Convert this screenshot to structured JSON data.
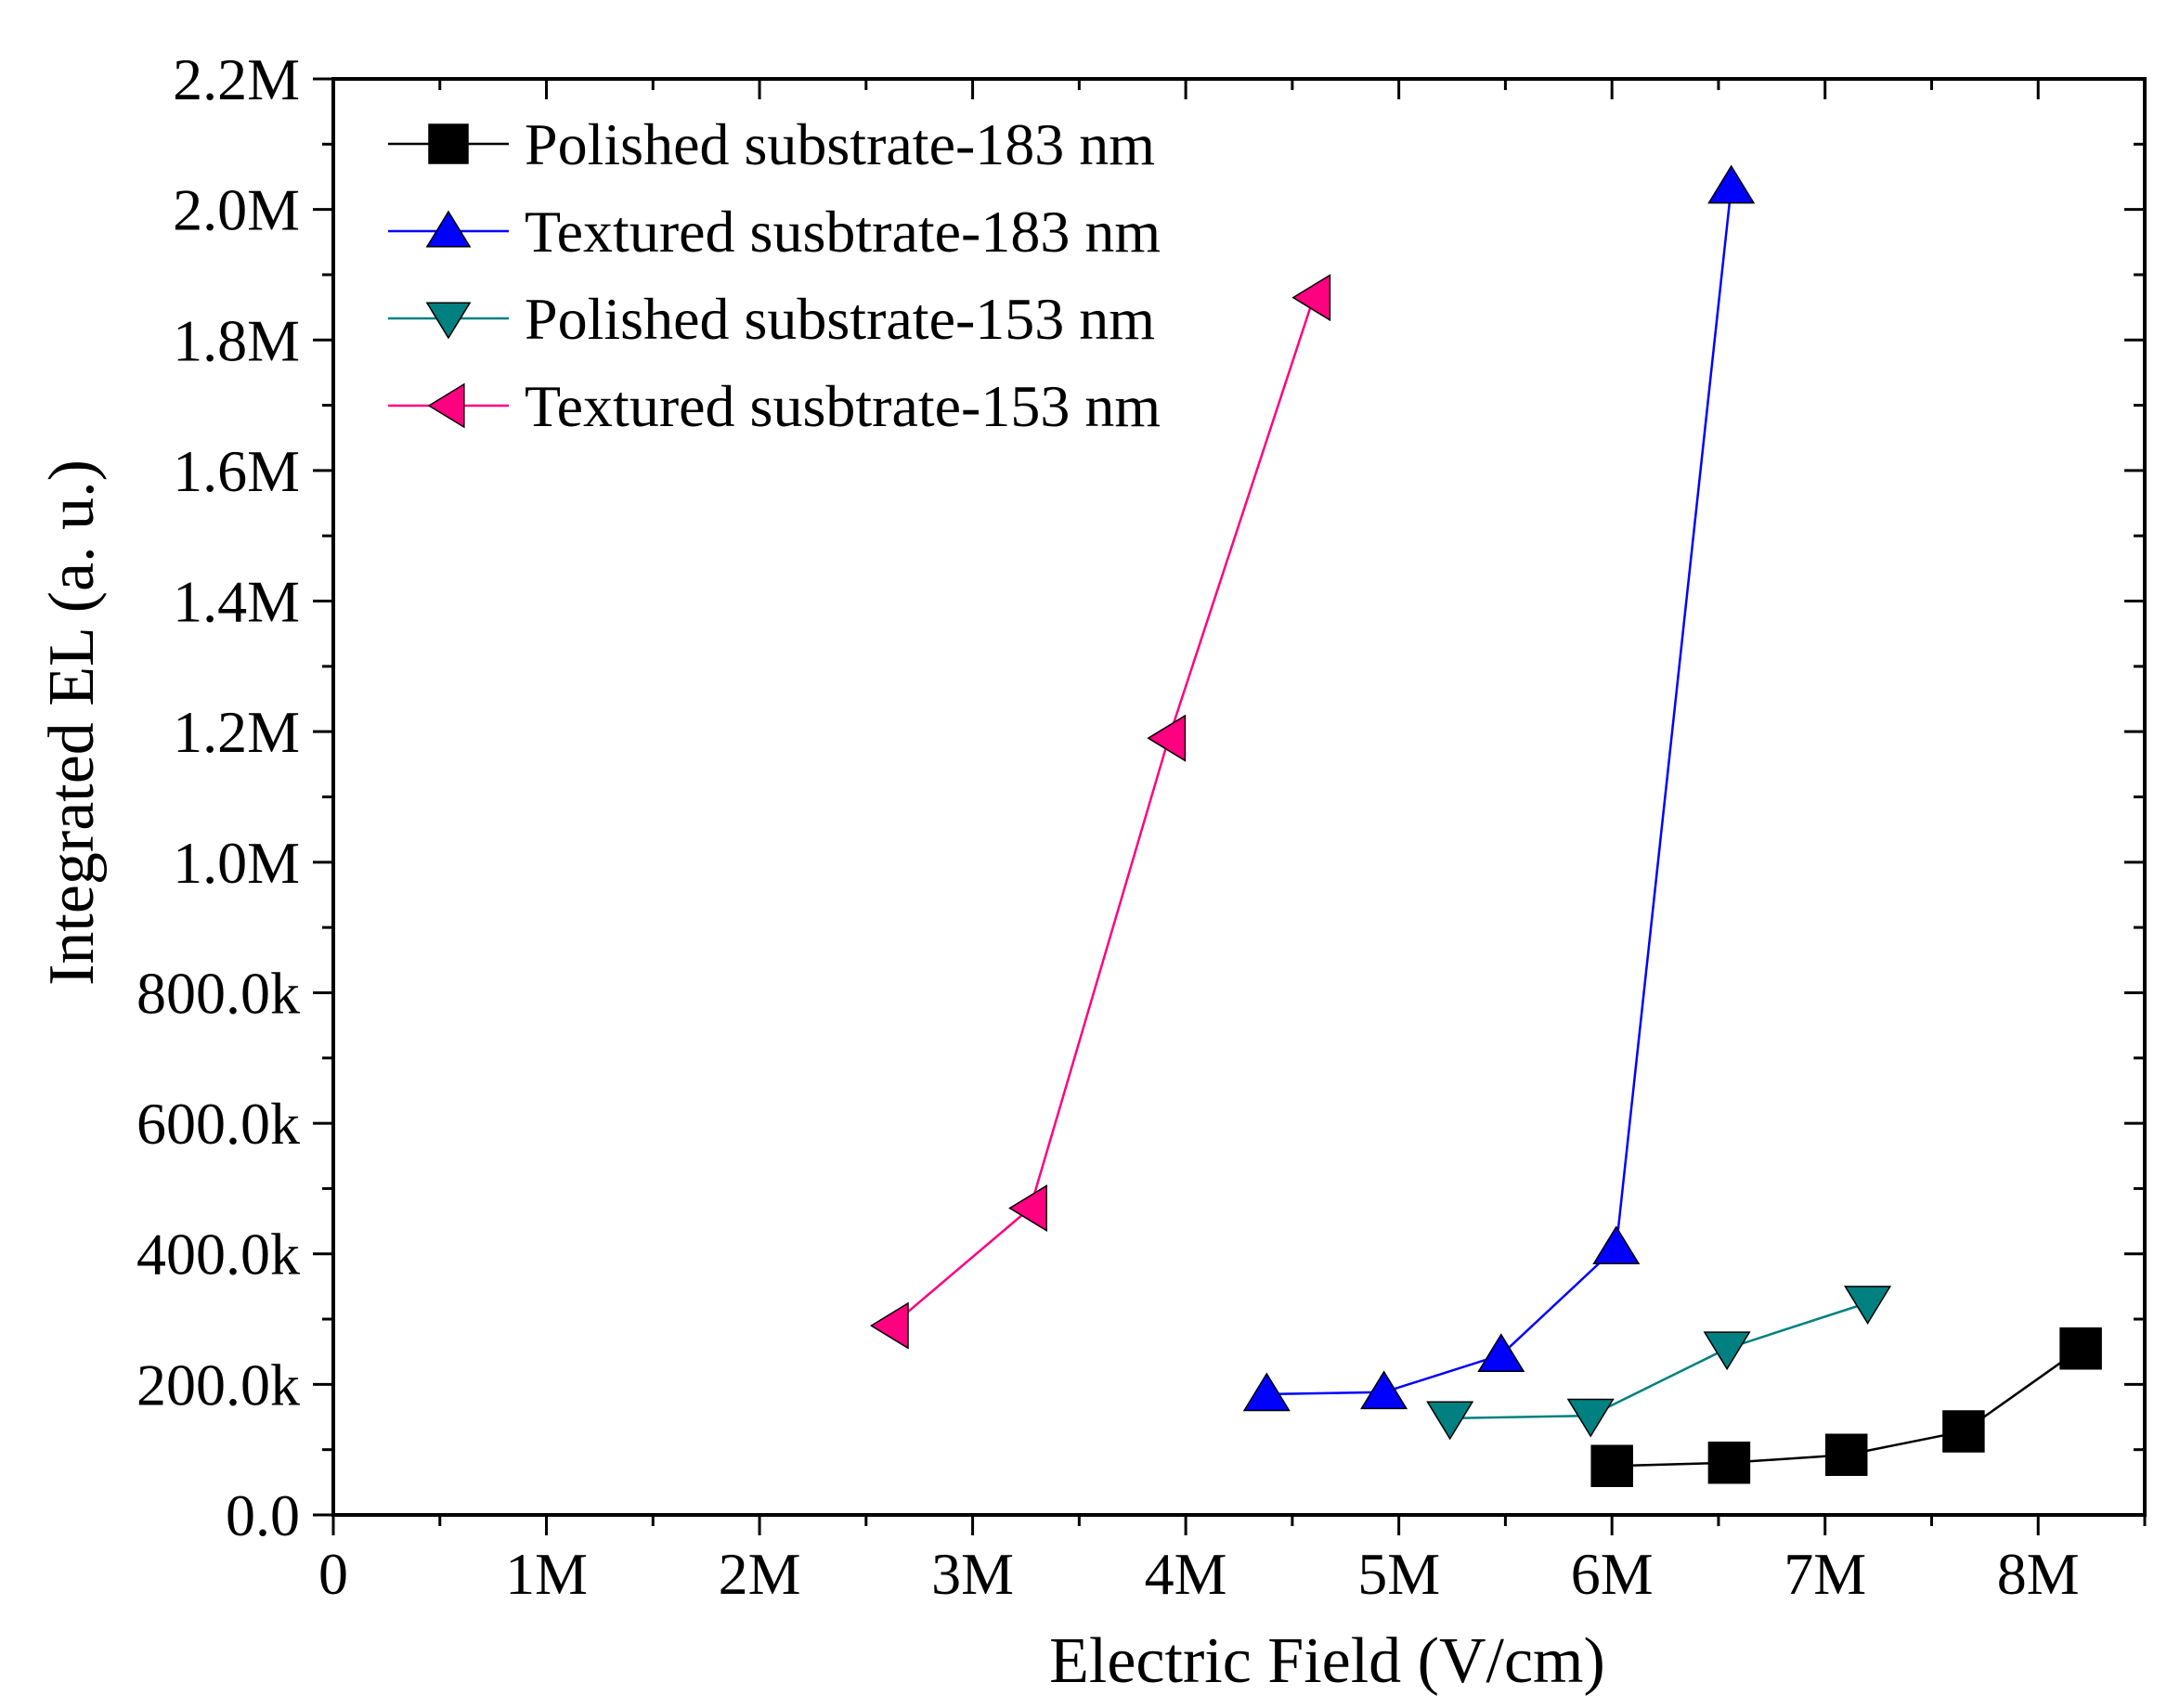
{
  "chart_data": {
    "type": "line",
    "xlabel": "Electric Field (V/cm)",
    "ylabel": "Integrated EL (a. u.)",
    "xlim": [
      0,
      8500000
    ],
    "ylim": [
      0,
      2200000
    ],
    "x_ticks": [
      {
        "value": 0,
        "label": "0"
      },
      {
        "value": 1000000,
        "label": "1M"
      },
      {
        "value": 2000000,
        "label": "2M"
      },
      {
        "value": 3000000,
        "label": "3M"
      },
      {
        "value": 4000000,
        "label": "4M"
      },
      {
        "value": 5000000,
        "label": "5M"
      },
      {
        "value": 6000000,
        "label": "6M"
      },
      {
        "value": 7000000,
        "label": "7M"
      },
      {
        "value": 8000000,
        "label": "8M"
      }
    ],
    "y_ticks": [
      {
        "value": 0,
        "label": "0.0"
      },
      {
        "value": 200000,
        "label": "200.0k"
      },
      {
        "value": 400000,
        "label": "400.0k"
      },
      {
        "value": 600000,
        "label": "600.0k"
      },
      {
        "value": 800000,
        "label": "800.0k"
      },
      {
        "value": 1000000,
        "label": "1.0M"
      },
      {
        "value": 1200000,
        "label": "1.2M"
      },
      {
        "value": 1400000,
        "label": "1.4M"
      },
      {
        "value": 1600000,
        "label": "1.6M"
      },
      {
        "value": 1800000,
        "label": "1.8M"
      },
      {
        "value": 2000000,
        "label": "2.0M"
      },
      {
        "value": 2200000,
        "label": "2.2M"
      }
    ],
    "grid": false,
    "legend_position": "top-left",
    "series": [
      {
        "name": "Polished substrate-183 nm",
        "color": "#000000",
        "marker": "square",
        "x": [
          6000000,
          6550000,
          7100000,
          7650000,
          8200000
        ],
        "y": [
          75000,
          80000,
          92000,
          128000,
          255000
        ]
      },
      {
        "name": "Textured susbtrate-183 nm",
        "color": "#0000ff",
        "marker": "triangle-up",
        "x": [
          4380000,
          4930000,
          5480000,
          6020000,
          6560000
        ],
        "y": [
          185000,
          188000,
          245000,
          410000,
          2035000
        ]
      },
      {
        "name": "Polished substrate-153 nm",
        "color": "#008080",
        "marker": "triangle-down",
        "x": [
          5240000,
          5900000,
          6540000,
          7200000
        ],
        "y": [
          148000,
          152000,
          255000,
          325000
        ]
      },
      {
        "name": "Textured susbtrate-153 nm",
        "color": "#ff0080",
        "marker": "triangle-left",
        "x": [
          2620000,
          3270000,
          3920000,
          4600000
        ],
        "y": [
          290000,
          470000,
          1190000,
          1865000
        ]
      }
    ]
  }
}
